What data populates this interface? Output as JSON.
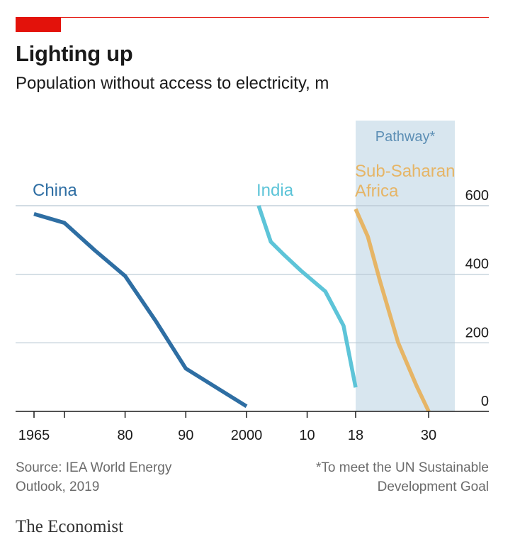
{
  "header": {
    "title": "Lighting up",
    "subtitle": "Population without access to electricity, m"
  },
  "footer": {
    "source_line1": "Source: IEA World Energy",
    "source_line2": "Outlook, 2019",
    "footnote_line1": "*To meet the UN Sustainable",
    "footnote_line2": "Development Goal"
  },
  "brand": "The Economist",
  "colors": {
    "accent": "#e3120b",
    "china": "#2e6ea3",
    "india": "#5dc4d8",
    "ssa": "#e6b566",
    "pathway_band": "#d8e6ef",
    "pathway_label": "#5d8fb5",
    "grid": "#b7c7d2"
  },
  "chart_data": {
    "type": "line",
    "title": "Lighting up",
    "subtitle": "Population without access to electricity, m",
    "ylabel": "",
    "ylim": [
      0,
      600
    ],
    "y_ticks": [
      0,
      200,
      400,
      600
    ],
    "grid": true,
    "y_axis_side": "right",
    "annotation": {
      "text": "Pathway*",
      "type": "shaded-band"
    },
    "series": [
      {
        "name": "China",
        "x": [
          1965,
          1970,
          1975,
          1980,
          1985,
          1990,
          1995,
          2000
        ],
        "values": [
          576,
          550,
          470,
          395,
          265,
          125,
          70,
          15
        ]
      },
      {
        "name": "India",
        "x": [
          2002,
          2004,
          2006,
          2009,
          2013,
          2016,
          2018
        ],
        "values": [
          600,
          495,
          460,
          410,
          350,
          250,
          70
        ]
      },
      {
        "name_line1": "Sub-Saharan",
        "name_line2": "Africa",
        "x": [
          2018,
          2020,
          2022,
          2025,
          2028,
          2030
        ],
        "values": [
          590,
          510,
          380,
          200,
          75,
          0
        ]
      }
    ],
    "x_ticks": [
      {
        "value": 1965,
        "label": "1965"
      },
      {
        "value": 1980,
        "label": "80"
      },
      {
        "value": 1990,
        "label": "90"
      },
      {
        "value": 2000,
        "label": "2000"
      },
      {
        "value": 2010,
        "label": "10"
      },
      {
        "value": 2018,
        "label": "18"
      },
      {
        "value": 2030,
        "label": "30"
      }
    ],
    "x_ticks_unlabeled": [
      1970
    ]
  }
}
